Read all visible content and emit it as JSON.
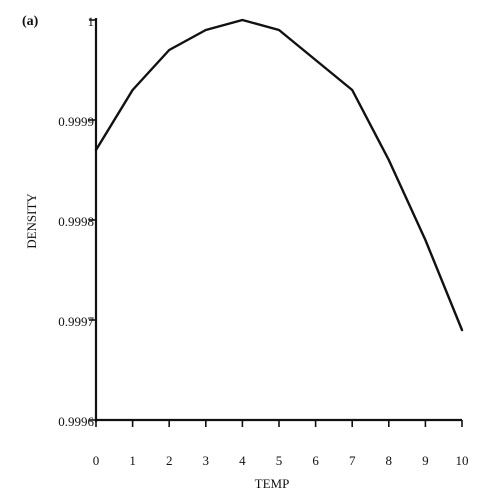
{
  "panel_label": "(a)",
  "chart_data": {
    "type": "line",
    "title": "",
    "xlabel": "TEMP",
    "ylabel": "DENSITY",
    "xlim": [
      0,
      10
    ],
    "ylim": [
      0.9996,
      1.0
    ],
    "grid": false,
    "legend": "none",
    "x_ticks": [
      "0",
      "1",
      "2",
      "3",
      "4",
      "5",
      "6",
      "7",
      "8",
      "9",
      "10"
    ],
    "y_ticks": [
      "0.9996",
      "0.9997",
      "0.9998",
      "0.9999",
      "1"
    ],
    "series": [
      {
        "x": [
          0,
          1,
          2,
          3,
          4,
          5,
          6,
          7,
          8,
          9,
          10
        ],
        "y": [
          0.99987,
          0.99993,
          0.99997,
          0.99999,
          1.0,
          0.99999,
          0.99996,
          0.99993,
          0.99986,
          0.99978,
          0.99969
        ]
      }
    ]
  }
}
